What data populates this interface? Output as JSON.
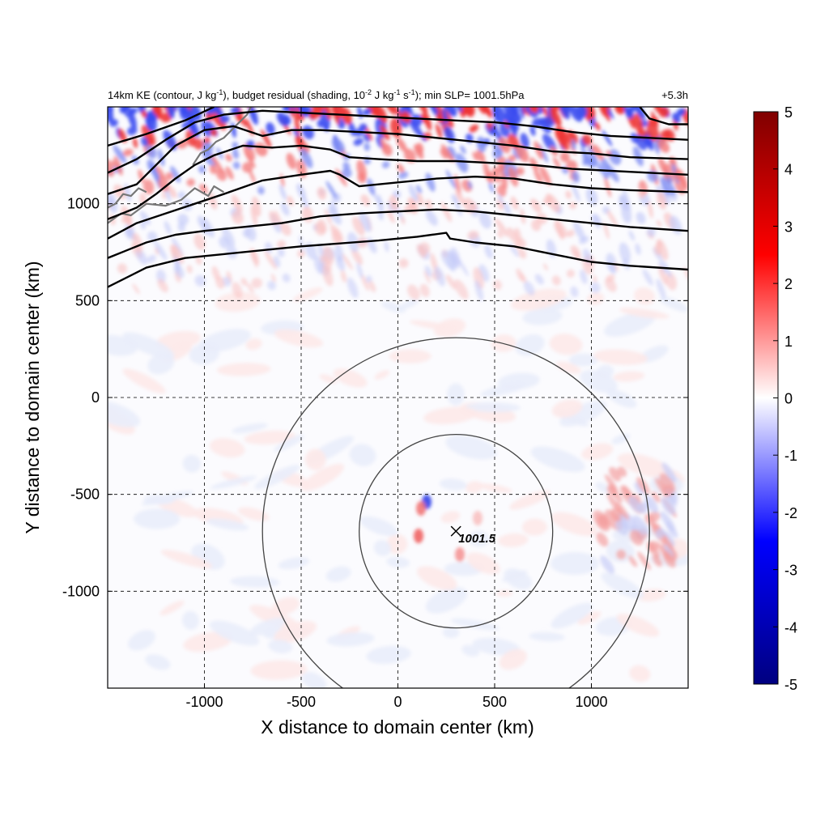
{
  "chart_data": {
    "type": "heatmap",
    "title": {
      "a": "14km KE (contour, J kg",
      "a_sup": "-1",
      "b": "), budget residual (shading, 10",
      "b_sup": "-2",
      "c": " J kg",
      "c_sup": "-1",
      "d": " s",
      "d_sup": "-1",
      "e": "); min SLP= 1001.5hPa"
    },
    "time_label": "+5.3h",
    "xlabel": "X distance to domain center (km)",
    "ylabel": "Y distance to domain center (km)",
    "xlim": [
      -1500,
      1500
    ],
    "ylim": [
      -1500,
      1500
    ],
    "x_ticks": [
      "-1000",
      "-500",
      "0",
      "500",
      "1000"
    ],
    "x_tick_values": [
      -1000,
      -500,
      0,
      500,
      1000
    ],
    "y_ticks": [
      "1000",
      "500",
      "0",
      "-500",
      "-1000"
    ],
    "y_tick_values": [
      1000,
      500,
      0,
      -500,
      -1000
    ],
    "grid": true,
    "colorbar": {
      "ticks": [
        "5",
        "4",
        "3",
        "2",
        "1",
        "0",
        "-1",
        "-2",
        "-3",
        "-4",
        "-5"
      ],
      "values": [
        5,
        4,
        3,
        2,
        1,
        0,
        -1,
        -2,
        -3,
        -4,
        -5
      ],
      "range": [
        -5,
        5
      ],
      "colors": [
        "#000080",
        "#0000ff",
        "#ffffff",
        "#ff0000",
        "#800000"
      ]
    },
    "storm_center": {
      "x": 300,
      "y": -690,
      "label": "1001.5"
    },
    "range_rings_km": [
      500,
      1000
    ],
    "ke_contours_km": [
      [
        [
          -1500,
          570
        ],
        [
          -1300,
          670
        ],
        [
          -1100,
          720
        ],
        [
          -900,
          740
        ],
        [
          -700,
          760
        ],
        [
          -500,
          780
        ],
        [
          -300,
          795
        ],
        [
          -100,
          810
        ],
        [
          100,
          830
        ],
        [
          250,
          850
        ],
        [
          270,
          820
        ],
        [
          400,
          800
        ],
        [
          600,
          780
        ],
        [
          800,
          740
        ],
        [
          1000,
          700
        ],
        [
          1200,
          680
        ],
        [
          1500,
          660
        ]
      ],
      [
        [
          -1500,
          720
        ],
        [
          -1300,
          800
        ],
        [
          -1150,
          840
        ],
        [
          -1000,
          860
        ],
        [
          -800,
          880
        ],
        [
          -600,
          900
        ],
        [
          -400,
          935
        ],
        [
          -200,
          950
        ],
        [
          0,
          960
        ],
        [
          200,
          970
        ],
        [
          400,
          960
        ],
        [
          600,
          940
        ],
        [
          800,
          920
        ],
        [
          1000,
          900
        ],
        [
          1200,
          880
        ],
        [
          1500,
          860
        ]
      ],
      [
        [
          -1500,
          820
        ],
        [
          -1350,
          900
        ],
        [
          -1200,
          950
        ],
        [
          -1050,
          1000
        ],
        [
          -900,
          1050
        ],
        [
          -700,
          1120
        ],
        [
          -500,
          1150
        ],
        [
          -350,
          1170
        ],
        [
          -300,
          1150
        ],
        [
          -200,
          1090
        ],
        [
          0,
          1110
        ],
        [
          200,
          1130
        ],
        [
          400,
          1140
        ],
        [
          600,
          1130
        ],
        [
          800,
          1100
        ],
        [
          1000,
          1080
        ],
        [
          1200,
          1070
        ],
        [
          1500,
          1060
        ]
      ],
      [
        [
          -1500,
          920
        ],
        [
          -1350,
          980
        ],
        [
          -1250,
          1050
        ],
        [
          -1150,
          1130
        ],
        [
          -1050,
          1200
        ],
        [
          -950,
          1250
        ],
        [
          -800,
          1300
        ],
        [
          -650,
          1290
        ],
        [
          -500,
          1300
        ],
        [
          -350,
          1280
        ],
        [
          -250,
          1240
        ],
        [
          -100,
          1230
        ],
        [
          100,
          1220
        ],
        [
          300,
          1220
        ],
        [
          500,
          1210
        ],
        [
          700,
          1200
        ],
        [
          900,
          1180
        ],
        [
          1100,
          1170
        ],
        [
          1300,
          1160
        ],
        [
          1500,
          1150
        ]
      ],
      [
        [
          -1500,
          1050
        ],
        [
          -1350,
          1100
        ],
        [
          -1250,
          1200
        ],
        [
          -1150,
          1300
        ],
        [
          -1000,
          1380
        ],
        [
          -850,
          1400
        ],
        [
          -700,
          1350
        ],
        [
          -550,
          1380
        ],
        [
          -400,
          1380
        ],
        [
          -200,
          1370
        ],
        [
          0,
          1360
        ],
        [
          200,
          1340
        ],
        [
          400,
          1320
        ],
        [
          600,
          1300
        ],
        [
          800,
          1270
        ],
        [
          1000,
          1260
        ],
        [
          1200,
          1240
        ],
        [
          1500,
          1230
        ]
      ],
      [
        [
          -1500,
          1160
        ],
        [
          -1350,
          1230
        ],
        [
          -1200,
          1330
        ],
        [
          -1050,
          1420
        ],
        [
          -900,
          1460
        ],
        [
          -700,
          1480
        ],
        [
          -500,
          1470
        ],
        [
          -300,
          1460
        ],
        [
          -100,
          1450
        ],
        [
          100,
          1440
        ],
        [
          300,
          1430
        ],
        [
          500,
          1420
        ],
        [
          700,
          1400
        ],
        [
          900,
          1370
        ],
        [
          1100,
          1350
        ],
        [
          1300,
          1340
        ],
        [
          1500,
          1330
        ]
      ],
      [
        [
          -1500,
          1300
        ],
        [
          -1300,
          1360
        ],
        [
          -1100,
          1430
        ],
        [
          -950,
          1500
        ]
      ],
      [
        [
          1250,
          1500
        ],
        [
          1300,
          1440
        ],
        [
          1400,
          1410
        ],
        [
          1500,
          1410
        ]
      ]
    ],
    "coast_lines_km": [
      [
        [
          -1500,
          900
        ],
        [
          -1430,
          950
        ],
        [
          -1380,
          940
        ],
        [
          -1300,
          1000
        ],
        [
          -1200,
          990
        ],
        [
          -1120,
          1020
        ],
        [
          -1050,
          1080
        ],
        [
          -980,
          1040
        ],
        [
          -950,
          1090
        ],
        [
          -900,
          1060
        ]
      ],
      [
        [
          -1060,
          1200
        ],
        [
          -1020,
          1260
        ],
        [
          -980,
          1280
        ],
        [
          -940,
          1320
        ],
        [
          -900,
          1340
        ],
        [
          -860,
          1380
        ],
        [
          -820,
          1420
        ],
        [
          -780,
          1460
        ],
        [
          -760,
          1500
        ]
      ],
      [
        [
          -1500,
          980
        ],
        [
          -1460,
          1000
        ],
        [
          -1420,
          1050
        ],
        [
          -1380,
          1040
        ],
        [
          -1340,
          1080
        ],
        [
          -1300,
          1060
        ]
      ]
    ]
  }
}
